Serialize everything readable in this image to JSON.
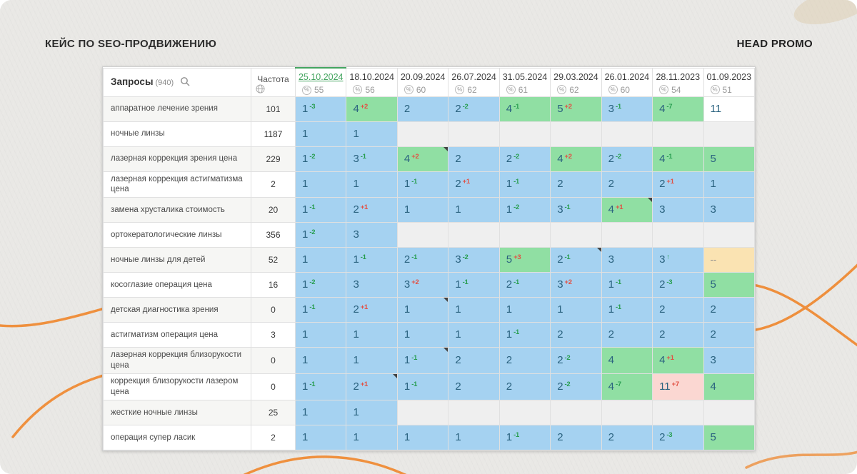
{
  "page": {
    "title": "КЕЙС ПО SEO-ПРОДВИЖЕНИЮ",
    "brand": "HEAD PROMO"
  },
  "colors": {
    "blue": "#a5d2f1",
    "green": "#90dfa3",
    "gray": "#efefef",
    "white": "#ffffff",
    "orange": "#fae3b2",
    "pink": "#fbd7d2",
    "accent_green": "#43a45f",
    "delta_green": "#279d4f",
    "delta_red": "#e25043",
    "curve_orange": "#ef8b35"
  },
  "table": {
    "queries": {
      "label": "Запросы",
      "count": "(940)"
    },
    "frequency_label": "Частота",
    "columns": [
      {
        "date": "25.10.2024",
        "visibility": "55",
        "selected": true
      },
      {
        "date": "18.10.2024",
        "visibility": "56"
      },
      {
        "date": "20.09.2024",
        "visibility": "60"
      },
      {
        "date": "26.07.2024",
        "visibility": "62"
      },
      {
        "date": "31.05.2024",
        "visibility": "61"
      },
      {
        "date": "29.03.2024",
        "visibility": "62"
      },
      {
        "date": "26.01.2024",
        "visibility": "60"
      },
      {
        "date": "28.11.2023",
        "visibility": "54"
      },
      {
        "date": "01.09.2023",
        "visibility": "51"
      }
    ],
    "rows": [
      {
        "query": "аппаратное лечение зрения",
        "frequency": "101",
        "cells": [
          {
            "pos": "1",
            "delta": "-3",
            "bg": "blue"
          },
          {
            "pos": "4",
            "delta": "+2",
            "bg": "green"
          },
          {
            "pos": "2",
            "bg": "blue"
          },
          {
            "pos": "2",
            "delta": "-2",
            "bg": "blue"
          },
          {
            "pos": "4",
            "delta": "-1",
            "bg": "green"
          },
          {
            "pos": "5",
            "delta": "+2",
            "bg": "green"
          },
          {
            "pos": "3",
            "delta": "-1",
            "bg": "blue"
          },
          {
            "pos": "4",
            "delta": "-7",
            "bg": "green"
          },
          {
            "pos": "11",
            "bg": "white"
          }
        ]
      },
      {
        "query": "ночные линзы",
        "frequency": "1187",
        "cells": [
          {
            "pos": "1",
            "bg": "blue"
          },
          {
            "pos": "1",
            "bg": "blue"
          },
          {
            "bg": "gray"
          },
          {
            "bg": "gray"
          },
          {
            "bg": "gray"
          },
          {
            "bg": "gray"
          },
          {
            "bg": "gray"
          },
          {
            "bg": "gray"
          },
          {
            "bg": "gray"
          }
        ]
      },
      {
        "query": "лазерная коррекция зрения цена",
        "frequency": "229",
        "cells": [
          {
            "pos": "1",
            "delta": "-2",
            "bg": "blue"
          },
          {
            "pos": "3",
            "delta": "-1",
            "bg": "blue"
          },
          {
            "pos": "4",
            "delta": "+2",
            "bg": "green",
            "note": true
          },
          {
            "pos": "2",
            "bg": "blue"
          },
          {
            "pos": "2",
            "delta": "-2",
            "bg": "blue"
          },
          {
            "pos": "4",
            "delta": "+2",
            "bg": "green"
          },
          {
            "pos": "2",
            "delta": "-2",
            "bg": "blue"
          },
          {
            "pos": "4",
            "delta": "-1",
            "bg": "green"
          },
          {
            "pos": "5",
            "bg": "green"
          }
        ]
      },
      {
        "query": "лазерная коррекция астигматизма цена",
        "frequency": "2",
        "cells": [
          {
            "pos": "1",
            "bg": "blue"
          },
          {
            "pos": "1",
            "bg": "blue"
          },
          {
            "pos": "1",
            "delta": "-1",
            "bg": "blue"
          },
          {
            "pos": "2",
            "delta": "+1",
            "bg": "blue"
          },
          {
            "pos": "1",
            "delta": "-1",
            "bg": "blue"
          },
          {
            "pos": "2",
            "bg": "blue"
          },
          {
            "pos": "2",
            "bg": "blue"
          },
          {
            "pos": "2",
            "delta": "+1",
            "bg": "blue"
          },
          {
            "pos": "1",
            "bg": "blue"
          }
        ]
      },
      {
        "query": "замена хрусталика стоимость",
        "frequency": "20",
        "cells": [
          {
            "pos": "1",
            "delta": "-1",
            "bg": "blue"
          },
          {
            "pos": "2",
            "delta": "+1",
            "bg": "blue"
          },
          {
            "pos": "1",
            "bg": "blue"
          },
          {
            "pos": "1",
            "bg": "blue"
          },
          {
            "pos": "1",
            "delta": "-2",
            "bg": "blue"
          },
          {
            "pos": "3",
            "delta": "-1",
            "bg": "blue"
          },
          {
            "pos": "4",
            "delta": "+1",
            "bg": "green",
            "note": true
          },
          {
            "pos": "3",
            "bg": "blue"
          },
          {
            "pos": "3",
            "bg": "blue"
          }
        ]
      },
      {
        "query": "ортокератологические линзы",
        "frequency": "356",
        "cells": [
          {
            "pos": "1",
            "delta": "-2",
            "bg": "blue"
          },
          {
            "pos": "3",
            "bg": "blue"
          },
          {
            "bg": "gray"
          },
          {
            "bg": "gray"
          },
          {
            "bg": "gray"
          },
          {
            "bg": "gray"
          },
          {
            "bg": "gray"
          },
          {
            "bg": "gray"
          },
          {
            "bg": "gray"
          }
        ]
      },
      {
        "query": "ночные линзы для детей",
        "frequency": "52",
        "cells": [
          {
            "pos": "1",
            "bg": "blue"
          },
          {
            "pos": "1",
            "delta": "-1",
            "bg": "blue"
          },
          {
            "pos": "2",
            "delta": "-1",
            "bg": "blue"
          },
          {
            "pos": "3",
            "delta": "-2",
            "bg": "blue"
          },
          {
            "pos": "5",
            "delta": "+3",
            "bg": "green"
          },
          {
            "pos": "2",
            "delta": "-1",
            "bg": "blue",
            "note": true
          },
          {
            "pos": "3",
            "bg": "blue"
          },
          {
            "pos": "3",
            "delta": "↑",
            "bg": "blue"
          },
          {
            "pos": "--",
            "bg": "orange"
          }
        ]
      },
      {
        "query": "косоглазие операция цена",
        "frequency": "16",
        "cells": [
          {
            "pos": "1",
            "delta": "-2",
            "bg": "blue"
          },
          {
            "pos": "3",
            "bg": "blue"
          },
          {
            "pos": "3",
            "delta": "+2",
            "bg": "blue"
          },
          {
            "pos": "1",
            "delta": "-1",
            "bg": "blue"
          },
          {
            "pos": "2",
            "delta": "-1",
            "bg": "blue"
          },
          {
            "pos": "3",
            "delta": "+2",
            "bg": "blue"
          },
          {
            "pos": "1",
            "delta": "-1",
            "bg": "blue"
          },
          {
            "pos": "2",
            "delta": "-3",
            "bg": "blue"
          },
          {
            "pos": "5",
            "bg": "green"
          }
        ]
      },
      {
        "query": "детская диагностика зрения",
        "frequency": "0",
        "cells": [
          {
            "pos": "1",
            "delta": "-1",
            "bg": "blue"
          },
          {
            "pos": "2",
            "delta": "+1",
            "bg": "blue"
          },
          {
            "pos": "1",
            "bg": "blue",
            "note": true
          },
          {
            "pos": "1",
            "bg": "blue"
          },
          {
            "pos": "1",
            "bg": "blue"
          },
          {
            "pos": "1",
            "bg": "blue"
          },
          {
            "pos": "1",
            "delta": "-1",
            "bg": "blue"
          },
          {
            "pos": "2",
            "bg": "blue"
          },
          {
            "pos": "2",
            "bg": "blue"
          }
        ]
      },
      {
        "query": "астигматизм операция цена",
        "frequency": "3",
        "cells": [
          {
            "pos": "1",
            "bg": "blue"
          },
          {
            "pos": "1",
            "bg": "blue"
          },
          {
            "pos": "1",
            "bg": "blue"
          },
          {
            "pos": "1",
            "bg": "blue"
          },
          {
            "pos": "1",
            "delta": "-1",
            "bg": "blue"
          },
          {
            "pos": "2",
            "bg": "blue"
          },
          {
            "pos": "2",
            "bg": "blue"
          },
          {
            "pos": "2",
            "bg": "blue"
          },
          {
            "pos": "2",
            "bg": "blue"
          }
        ]
      },
      {
        "query": "лазерная коррекция близорукости цена",
        "frequency": "0",
        "cells": [
          {
            "pos": "1",
            "bg": "blue"
          },
          {
            "pos": "1",
            "bg": "blue"
          },
          {
            "pos": "1",
            "delta": "-1",
            "bg": "blue",
            "note": true
          },
          {
            "pos": "2",
            "bg": "blue"
          },
          {
            "pos": "2",
            "bg": "blue"
          },
          {
            "pos": "2",
            "delta": "-2",
            "bg": "blue"
          },
          {
            "pos": "4",
            "bg": "green"
          },
          {
            "pos": "4",
            "delta": "+1",
            "bg": "green"
          },
          {
            "pos": "3",
            "bg": "blue"
          }
        ]
      },
      {
        "query": "коррекция близорукости лазером цена",
        "frequency": "0",
        "cells": [
          {
            "pos": "1",
            "delta": "-1",
            "bg": "blue"
          },
          {
            "pos": "2",
            "delta": "+1",
            "bg": "blue",
            "note": true
          },
          {
            "pos": "1",
            "delta": "-1",
            "bg": "blue"
          },
          {
            "pos": "2",
            "bg": "blue"
          },
          {
            "pos": "2",
            "bg": "blue"
          },
          {
            "pos": "2",
            "delta": "-2",
            "bg": "blue"
          },
          {
            "pos": "4",
            "delta": "-7",
            "bg": "green"
          },
          {
            "pos": "11",
            "delta": "+7",
            "bg": "pink"
          },
          {
            "pos": "4",
            "bg": "green"
          }
        ]
      },
      {
        "query": "жесткие ночные линзы",
        "frequency": "25",
        "cells": [
          {
            "pos": "1",
            "bg": "blue"
          },
          {
            "pos": "1",
            "bg": "blue"
          },
          {
            "bg": "gray"
          },
          {
            "bg": "gray"
          },
          {
            "bg": "gray"
          },
          {
            "bg": "gray"
          },
          {
            "bg": "gray"
          },
          {
            "bg": "gray"
          },
          {
            "bg": "gray"
          }
        ]
      },
      {
        "query": "операция супер ласик",
        "frequency": "2",
        "cells": [
          {
            "pos": "1",
            "bg": "blue"
          },
          {
            "pos": "1",
            "bg": "blue"
          },
          {
            "pos": "1",
            "bg": "blue"
          },
          {
            "pos": "1",
            "bg": "blue"
          },
          {
            "pos": "1",
            "delta": "-1",
            "bg": "blue"
          },
          {
            "pos": "2",
            "bg": "blue"
          },
          {
            "pos": "2",
            "bg": "blue"
          },
          {
            "pos": "2",
            "delta": "-3",
            "bg": "blue"
          },
          {
            "pos": "5",
            "bg": "green"
          }
        ]
      }
    ]
  }
}
